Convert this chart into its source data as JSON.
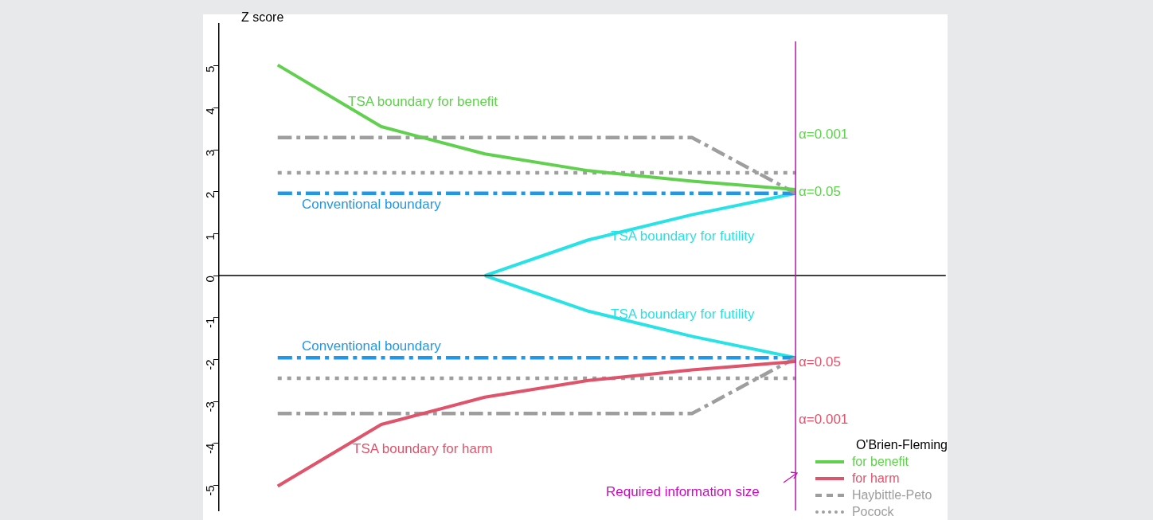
{
  "chart_data": {
    "type": "line",
    "ylabel": "Z score",
    "legend_title": "O'Brien-Fleming",
    "legend": "bottom right",
    "marker": "none",
    "grid": false,
    "tick_labels": "y",
    "categories": [
      null,
      null,
      null,
      null,
      null,
      null
    ],
    "ylim": [
      -5.6,
      6
    ],
    "yticks": [
      -5,
      -4,
      -3,
      -2,
      -1,
      0,
      1,
      2,
      3,
      4,
      5
    ],
    "series": [
      {
        "name": "for benefit",
        "color": "#61d04f",
        "line_style": "solid",
        "values": [
          5.02,
          3.55,
          2.9,
          2.5,
          2.25,
          2.05
        ]
      },
      {
        "name": "for harm",
        "color": "#df536b",
        "line_style": "solid",
        "values": [
          -5.02,
          -3.55,
          -2.9,
          -2.5,
          -2.25,
          -2.05
        ]
      },
      {
        "name": "Haybittle-Peto",
        "color": "#9e9e9e",
        "line_style": "dashed",
        "values": [
          3.29,
          3.29,
          3.29,
          3.29,
          3.29,
          1.96
        ]
      },
      {
        "name": "Pocock",
        "color": "#9e9e9e",
        "line_style": "dotted",
        "values": [
          2.45,
          2.45,
          2.45,
          2.45,
          2.45,
          2.45
        ]
      },
      {
        "color": "#9e9e9e",
        "line_style": "dashed",
        "values": [
          -3.29,
          -3.29,
          -3.29,
          -3.29,
          -3.29,
          -1.96
        ]
      },
      {
        "color": "#9e9e9e",
        "line_style": "dotted",
        "values": [
          -2.45,
          -2.45,
          -2.45,
          -2.45,
          -2.45,
          -2.45
        ]
      },
      {
        "color": "#2297e6",
        "line_style": "dashed",
        "values": [
          1.96,
          1.96,
          1.96,
          1.96,
          1.96,
          1.96
        ]
      },
      {
        "color": "#2297e6",
        "line_style": "dashed",
        "values": [
          -1.96,
          -1.96,
          -1.96,
          -1.96,
          -1.96,
          -1.96
        ]
      },
      {
        "color": "#28e2e5",
        "line_style": "solid",
        "values": [
          null,
          null,
          0,
          0.85,
          1.45,
          1.96
        ]
      },
      {
        "color": "#28e2e5",
        "line_style": "solid",
        "values": [
          null,
          null,
          0,
          -0.85,
          -1.45,
          -1.96
        ]
      }
    ],
    "ref_lines": [
      {
        "axis": "y",
        "value": 0,
        "color": "#000000"
      }
    ],
    "annotations": [
      "TSA boundary for benefit",
      "Conventional boundary",
      "TSA boundary for futility",
      "TSA boundary for futility",
      "Conventional boundary",
      "TSA boundary for harm",
      "α=0.001",
      "α=0.05",
      "α=0.05",
      "α=0.001",
      "Required information size"
    ]
  }
}
